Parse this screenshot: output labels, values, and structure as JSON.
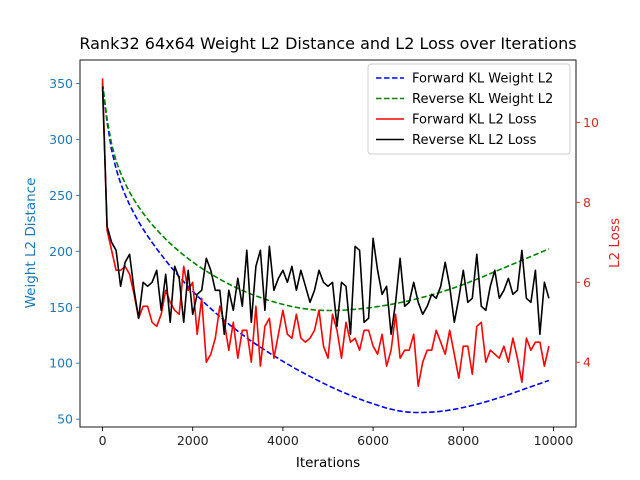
{
  "chart_data": {
    "type": "line",
    "title": "Rank32 64x64 Weight L2 Distance and L2 Loss over Iterations",
    "xlabel": "Iterations",
    "ylabel_left": "Weight L2 Distance",
    "ylabel_right": "L2 Loss",
    "xlim": [
      -500,
      10500
    ],
    "ylim_left": [
      43,
      371
    ],
    "ylim_right": [
      2.38,
      11.56
    ],
    "x_ticks": [
      0,
      2000,
      4000,
      6000,
      8000,
      10000
    ],
    "y_ticks_left": [
      50,
      100,
      150,
      200,
      250,
      300,
      350
    ],
    "y_ticks_right": [
      4,
      6,
      8,
      10
    ],
    "left_axis_color": "#1f77b4",
    "right_axis_color": "#d62728",
    "grid": false,
    "legend_position": "top-right",
    "series": [
      {
        "name": "Forward KL Weight L2",
        "axis": "left",
        "style": "dashed",
        "color": "#0000ff",
        "x": [
          0,
          100,
          200,
          300,
          400,
          500,
          600,
          700,
          800,
          900,
          1000,
          1100,
          1200,
          1300,
          1400,
          1500,
          1600,
          1700,
          1800,
          1900,
          2000,
          2100,
          2200,
          2300,
          2400,
          2500,
          2600,
          2700,
          2800,
          2900,
          3000,
          3100,
          3200,
          3300,
          3400,
          3500,
          3600,
          3700,
          3800,
          3900,
          4000,
          4100,
          4200,
          4300,
          4400,
          4500,
          4600,
          4700,
          4800,
          4900,
          5000,
          5100,
          5200,
          5300,
          5400,
          5500,
          5600,
          5700,
          5800,
          5900,
          6000,
          6100,
          6200,
          6300,
          6400,
          6500,
          6600,
          6700,
          6800,
          6900,
          7000,
          7100,
          7200,
          7300,
          7400,
          7500,
          7600,
          7700,
          7800,
          7900,
          8000,
          8100,
          8200,
          8300,
          8400,
          8500,
          8600,
          8700,
          8800,
          8900,
          9000,
          9100,
          9200,
          9300,
          9400,
          9500,
          9600,
          9700,
          9800,
          9900
        ],
        "values": [
          350.0,
          315.5,
          290.6,
          273.7,
          261.0,
          250.5,
          241.6,
          233.7,
          226.5,
          219.9,
          213.7,
          207.9,
          202.3,
          197.0,
          191.8,
          186.8,
          182.0,
          177.4,
          172.9,
          168.6,
          164.4,
          160.3,
          156.3,
          152.5,
          148.8,
          145.2,
          141.7,
          138.3,
          135.0,
          131.8,
          128.7,
          125.6,
          122.7,
          119.8,
          117.0,
          114.3,
          111.7,
          109.1,
          106.6,
          104.1,
          101.7,
          99.3,
          97.0,
          94.7,
          92.5,
          90.3,
          88.2,
          86.1,
          84.1,
          82.1,
          80.1,
          78.2,
          76.4,
          74.6,
          72.9,
          71.2,
          69.6,
          68.0,
          66.5,
          65.1,
          63.7,
          62.4,
          61.1,
          59.9,
          58.9,
          58.0,
          57.2,
          56.6,
          56.2,
          56.0,
          56.0,
          56.0,
          56.1,
          56.3,
          56.6,
          57.0,
          57.5,
          58.1,
          58.8,
          59.6,
          60.4,
          61.3,
          62.3,
          63.3,
          64.4,
          65.5,
          66.7,
          67.9,
          69.2,
          70.5,
          71.9,
          73.3,
          74.7,
          76.1,
          77.6,
          79.0,
          80.4,
          81.8,
          83.2,
          84.6
        ]
      },
      {
        "name": "Reverse KL Weight L2",
        "axis": "left",
        "style": "dashed",
        "color": "#008000",
        "x": [
          0,
          100,
          200,
          300,
          400,
          500,
          600,
          700,
          800,
          900,
          1000,
          1100,
          1200,
          1300,
          1400,
          1500,
          1600,
          1700,
          1800,
          1900,
          2000,
          2100,
          2200,
          2300,
          2400,
          2500,
          2600,
          2700,
          2800,
          2900,
          3000,
          3100,
          3200,
          3300,
          3400,
          3500,
          3600,
          3700,
          3800,
          3900,
          4000,
          4100,
          4200,
          4300,
          4400,
          4500,
          4600,
          4700,
          4800,
          4900,
          5000,
          5100,
          5200,
          5300,
          5400,
          5500,
          5600,
          5700,
          5800,
          5900,
          6000,
          6100,
          6200,
          6300,
          6400,
          6500,
          6600,
          6700,
          6800,
          6900,
          7000,
          7100,
          7200,
          7300,
          7400,
          7500,
          7600,
          7700,
          7800,
          7900,
          8000,
          8100,
          8200,
          8300,
          8400,
          8500,
          8600,
          8700,
          8800,
          8900,
          9000,
          9100,
          9200,
          9300,
          9400,
          9500,
          9600,
          9700,
          9800,
          9900
        ],
        "values": [
          350.0,
          318.0,
          295.8,
          280.9,
          269.8,
          260.7,
          252.9,
          246.0,
          239.8,
          234.1,
          228.8,
          223.9,
          219.3,
          215.0,
          210.9,
          207.0,
          203.4,
          199.9,
          196.6,
          193.5,
          190.5,
          187.6,
          184.9,
          182.3,
          179.8,
          177.4,
          175.1,
          172.9,
          170.8,
          168.8,
          166.9,
          165.1,
          163.4,
          161.7,
          160.2,
          158.7,
          157.3,
          156.0,
          154.8,
          153.6,
          152.6,
          151.6,
          150.7,
          149.9,
          149.2,
          148.6,
          148.1,
          147.7,
          147.4,
          147.2,
          147.1,
          147.1,
          147.2,
          147.4,
          147.6,
          147.9,
          148.2,
          148.6,
          149.0,
          149.5,
          150.0,
          150.6,
          151.2,
          151.9,
          152.6,
          153.4,
          154.2,
          155.0,
          155.9,
          156.9,
          157.9,
          158.9,
          160.0,
          161.1,
          162.3,
          163.5,
          164.8,
          166.1,
          167.5,
          168.9,
          170.4,
          171.9,
          173.5,
          175.1,
          176.7,
          178.4,
          180.1,
          181.8,
          183.5,
          185.2,
          186.9,
          188.6,
          190.3,
          192.0,
          193.7,
          195.4,
          197.1,
          198.8,
          200.5,
          202.2
        ]
      },
      {
        "name": "Forward KL L2 Loss",
        "axis": "right",
        "style": "solid",
        "color": "#ff0000",
        "x": [
          0,
          100,
          200,
          300,
          400,
          500,
          600,
          700,
          800,
          900,
          1000,
          1100,
          1200,
          1300,
          1400,
          1500,
          1600,
          1700,
          1800,
          1900,
          2000,
          2100,
          2200,
          2300,
          2400,
          2500,
          2600,
          2700,
          2800,
          2900,
          3000,
          3100,
          3200,
          3300,
          3400,
          3500,
          3600,
          3700,
          3800,
          3900,
          4000,
          4100,
          4200,
          4300,
          4400,
          4500,
          4600,
          4700,
          4800,
          4900,
          5000,
          5100,
          5200,
          5300,
          5400,
          5500,
          5600,
          5700,
          5800,
          5900,
          6000,
          6100,
          6200,
          6300,
          6400,
          6500,
          6600,
          6700,
          6800,
          6900,
          7000,
          7100,
          7200,
          7300,
          7400,
          7500,
          7600,
          7700,
          7800,
          7900,
          8000,
          8100,
          8200,
          8300,
          8400,
          8500,
          8600,
          8700,
          8800,
          8900,
          9000,
          9100,
          9200,
          9300,
          9400,
          9500,
          9600,
          9700,
          9800,
          9900
        ],
        "values": [
          11.1,
          7.3,
          6.8,
          6.3,
          6.3,
          6.4,
          6.2,
          5.7,
          5.1,
          5.4,
          5.4,
          5.0,
          4.9,
          5.2,
          5.8,
          5.5,
          5.3,
          5.2,
          6.4,
          5.8,
          6.0,
          4.7,
          5.6,
          4.0,
          4.2,
          4.6,
          5.4,
          5.0,
          4.3,
          5.0,
          4.1,
          4.8,
          4.8,
          4.0,
          5.4,
          3.9,
          4.9,
          5.1,
          4.1,
          4.7,
          5.3,
          4.7,
          4.6,
          5.2,
          4.6,
          4.5,
          4.6,
          4.8,
          5.3,
          4.4,
          4.1,
          5.2,
          4.8,
          4.1,
          5.0,
          4.5,
          4.6,
          4.3,
          4.8,
          4.8,
          4.4,
          4.2,
          4.7,
          3.9,
          4.3,
          5.2,
          4.1,
          4.3,
          4.3,
          4.7,
          3.4,
          4.0,
          4.3,
          4.3,
          4.8,
          4.5,
          4.2,
          4.8,
          4.2,
          3.6,
          4.4,
          4.4,
          3.7,
          4.9,
          5.0,
          4.0,
          4.3,
          4.2,
          4.1,
          4.4,
          4.0,
          4.6,
          4.1,
          3.5,
          4.6,
          4.3,
          4.5,
          4.5,
          3.9,
          4.4
        ]
      },
      {
        "name": "Reverse KL L2 Loss",
        "axis": "right",
        "style": "solid",
        "color": "#000000",
        "x": [
          0,
          100,
          200,
          300,
          400,
          500,
          600,
          700,
          800,
          900,
          1000,
          1100,
          1200,
          1300,
          1400,
          1500,
          1600,
          1700,
          1800,
          1900,
          2000,
          2100,
          2200,
          2300,
          2400,
          2500,
          2600,
          2700,
          2800,
          2900,
          3000,
          3100,
          3200,
          3300,
          3400,
          3500,
          3600,
          3700,
          3800,
          3900,
          4000,
          4100,
          4200,
          4300,
          4400,
          4500,
          4600,
          4700,
          4800,
          4900,
          5000,
          5100,
          5200,
          5300,
          5400,
          5500,
          5600,
          5700,
          5800,
          5900,
          6000,
          6100,
          6200,
          6300,
          6400,
          6500,
          6600,
          6700,
          6800,
          6900,
          7000,
          7100,
          7200,
          7300,
          7400,
          7500,
          7600,
          7700,
          7800,
          7900,
          8000,
          8100,
          8200,
          8300,
          8400,
          8500,
          8600,
          8700,
          8800,
          8900,
          9000,
          9100,
          9200,
          9300,
          9400,
          9500,
          9600,
          9700,
          9800,
          9900
        ],
        "values": [
          10.9,
          7.4,
          7.0,
          6.8,
          5.9,
          6.5,
          6.7,
          5.8,
          5.1,
          6.0,
          5.9,
          6.0,
          6.3,
          5.3,
          6.2,
          5.0,
          6.4,
          6.1,
          5.0,
          6.3,
          5.2,
          5.7,
          5.8,
          6.6,
          6.3,
          5.8,
          5.8,
          4.7,
          5.8,
          5.3,
          6.1,
          5.4,
          6.8,
          5.0,
          6.4,
          6.8,
          5.3,
          6.9,
          5.8,
          6.1,
          6.3,
          6.0,
          6.4,
          5.8,
          6.3,
          5.9,
          5.5,
          5.8,
          6.3,
          6.0,
          5.9,
          6.0,
          4.9,
          6.0,
          5.9,
          4.7,
          6.9,
          6.8,
          5.0,
          5.1,
          7.1,
          6.3,
          5.7,
          5.9,
          4.7,
          5.5,
          6.6,
          5.4,
          5.5,
          6.0,
          5.5,
          5.2,
          5.4,
          5.7,
          5.6,
          5.9,
          6.5,
          5.9,
          5.0,
          5.6,
          6.3,
          5.5,
          5.6,
          6.7,
          5.4,
          5.3,
          5.9,
          6.3,
          5.6,
          5.8,
          6.1,
          5.7,
          5.8,
          6.8,
          5.6,
          5.5,
          6.3,
          4.7,
          6.0,
          5.6
        ]
      }
    ]
  }
}
